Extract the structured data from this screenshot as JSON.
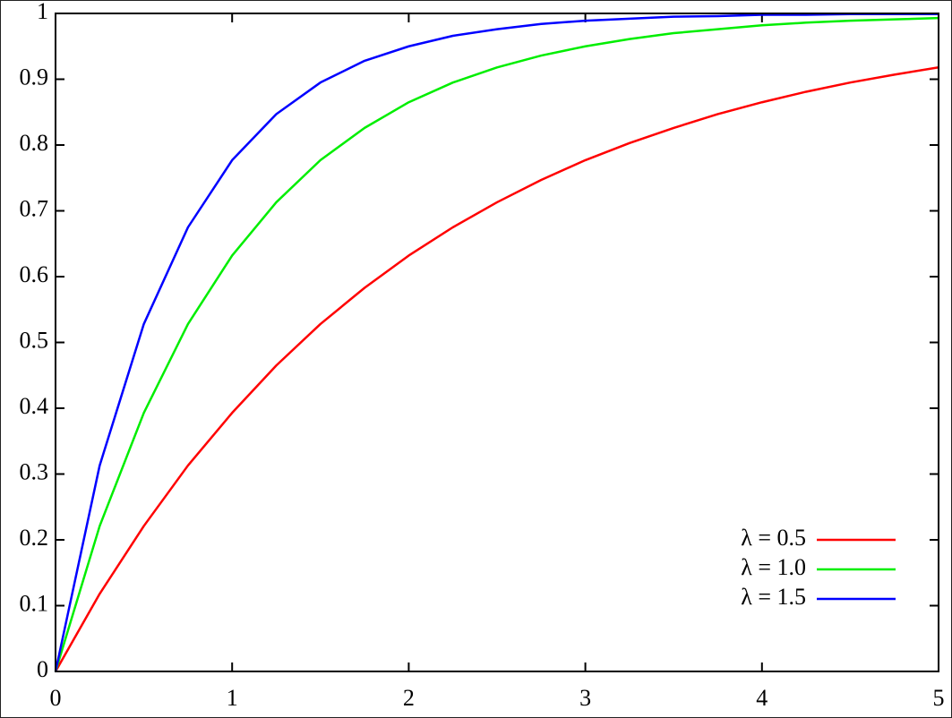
{
  "chart_data": {
    "type": "line",
    "x": [
      0,
      0.25,
      0.5,
      0.75,
      1,
      1.25,
      1.5,
      1.75,
      2,
      2.25,
      2.5,
      2.75,
      3,
      3.25,
      3.5,
      3.75,
      4,
      4.25,
      4.5,
      4.75,
      5
    ],
    "series": [
      {
        "name": "λ = 0.5",
        "color": "#ff0000",
        "values": [
          0,
          0.118,
          0.221,
          0.313,
          0.393,
          0.465,
          0.528,
          0.583,
          0.632,
          0.675,
          0.713,
          0.747,
          0.777,
          0.803,
          0.826,
          0.847,
          0.865,
          0.881,
          0.895,
          0.907,
          0.918
        ]
      },
      {
        "name": "λ = 1.0",
        "color": "#00ee00",
        "values": [
          0,
          0.221,
          0.393,
          0.528,
          0.632,
          0.713,
          0.777,
          0.826,
          0.865,
          0.895,
          0.918,
          0.936,
          0.95,
          0.961,
          0.97,
          0.976,
          0.982,
          0.986,
          0.989,
          0.991,
          0.993
        ]
      },
      {
        "name": "λ = 1.5",
        "color": "#0000ff",
        "values": [
          0,
          0.313,
          0.528,
          0.675,
          0.777,
          0.847,
          0.895,
          0.928,
          0.95,
          0.966,
          0.976,
          0.984,
          0.989,
          0.992,
          0.995,
          0.996,
          0.998,
          0.998,
          0.999,
          0.999,
          0.999
        ]
      }
    ],
    "xlim": [
      0,
      5
    ],
    "xticks": [
      0,
      1,
      2,
      3,
      4,
      5
    ],
    "ylim": [
      0,
      1
    ],
    "yticks": [
      0,
      0.1,
      0.2,
      0.3,
      0.4,
      0.5,
      0.6,
      0.7,
      0.8,
      0.9,
      1
    ],
    "legend": "lower right"
  }
}
